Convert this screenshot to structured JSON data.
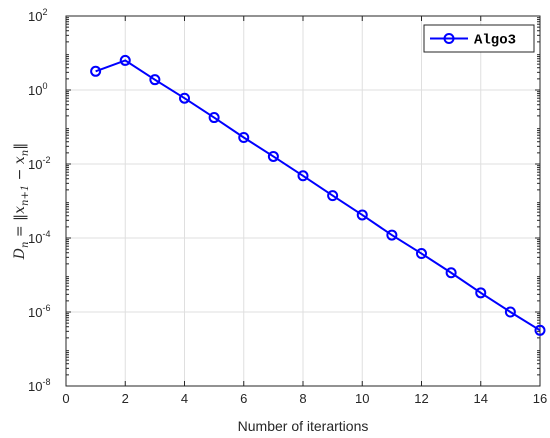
{
  "chart_data": {
    "type": "line",
    "title": "",
    "xlabel": "Number of iterartions",
    "ylabel": "D_n = ||x_{n+1} − x_n||",
    "xlim": [
      0,
      16
    ],
    "ylim": [
      1e-08,
      100
    ],
    "yscale": "log",
    "grid": true,
    "legend_position": "top-right",
    "x_ticks": [
      0,
      2,
      4,
      6,
      8,
      10,
      12,
      14,
      16
    ],
    "x_tick_labels": [
      "0",
      "2",
      "4",
      "6",
      "8",
      "10",
      "12",
      "14",
      "16"
    ],
    "y_ticks": [
      {
        "value": 1e-08,
        "base": "10",
        "exp": "-8"
      },
      {
        "value": 1e-06,
        "base": "10",
        "exp": "-6"
      },
      {
        "value": 0.0001,
        "base": "10",
        "exp": "-4"
      },
      {
        "value": 0.01,
        "base": "10",
        "exp": "-2"
      },
      {
        "value": 1,
        "base": "10",
        "exp": "0"
      },
      {
        "value": 100,
        "base": "10",
        "exp": "2"
      }
    ],
    "series": [
      {
        "name": "Algo3",
        "color": "#0000ff",
        "marker": "circle",
        "x": [
          1,
          2,
          3,
          4,
          5,
          6,
          7,
          8,
          9,
          10,
          11,
          12,
          13,
          14,
          15,
          16
        ],
        "y": [
          3.2,
          6.3,
          1.9,
          0.6,
          0.18,
          0.052,
          0.016,
          0.0048,
          0.0014,
          0.00042,
          0.00012,
          3.8e-05,
          1.15e-05,
          3.3e-06,
          1e-06,
          3.2e-07
        ]
      }
    ]
  }
}
